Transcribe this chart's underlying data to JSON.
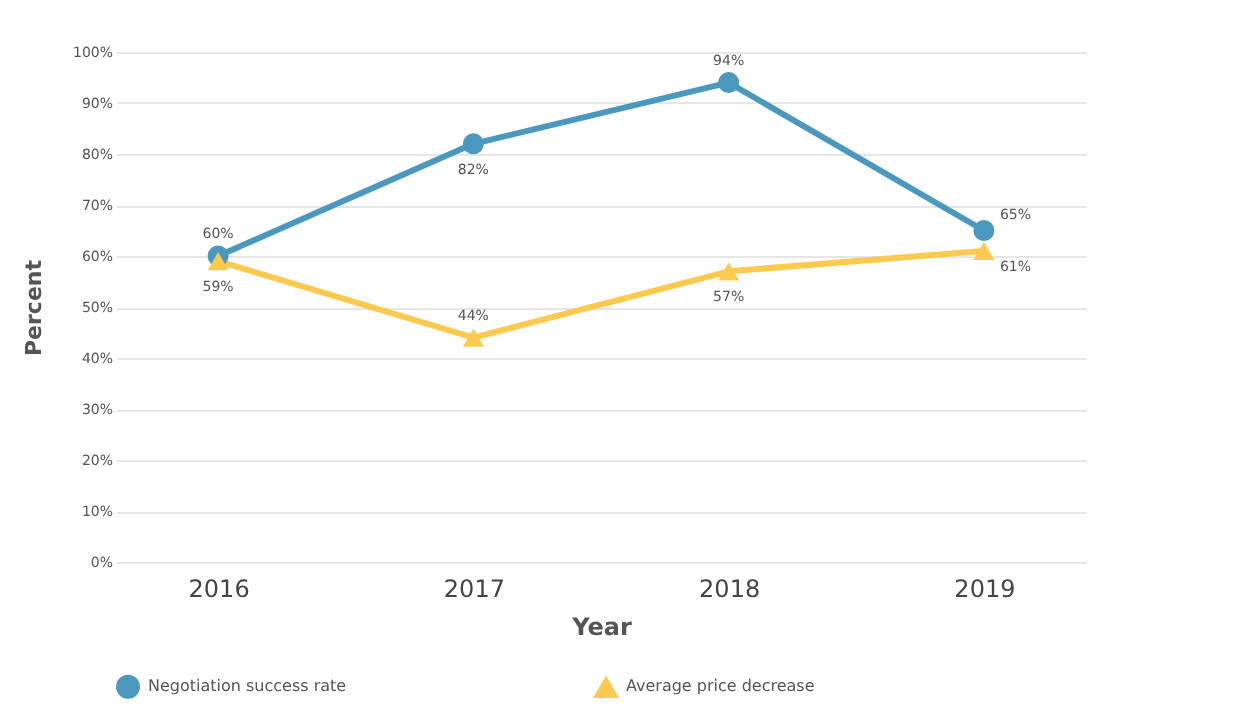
{
  "chart_data": {
    "type": "line",
    "xlabel": "Year",
    "ylabel": "Percent",
    "categories": [
      "2016",
      "2017",
      "2018",
      "2019"
    ],
    "series": [
      {
        "name": "Negotiation success rate",
        "color": "#4a98bd",
        "marker": "circle",
        "values": [
          60,
          82,
          94,
          65
        ],
        "value_labels": [
          "60%",
          "82%",
          "94%",
          "65%"
        ]
      },
      {
        "name": "Average price decrease",
        "color": "#fdca4f",
        "marker": "triangle",
        "values": [
          59,
          44,
          57,
          61
        ],
        "value_labels": [
          "59%",
          "44%",
          "57%",
          "61%"
        ]
      }
    ],
    "ylim": [
      0,
      100
    ],
    "yticks": [
      {
        "value": 0,
        "label": "0%"
      },
      {
        "value": 10,
        "label": "10%"
      },
      {
        "value": 20,
        "label": "20%"
      },
      {
        "value": 30,
        "label": "30%"
      },
      {
        "value": 40,
        "label": "40%"
      },
      {
        "value": 50,
        "label": "50%"
      },
      {
        "value": 60,
        "label": "60%"
      },
      {
        "value": 70,
        "label": "70%"
      },
      {
        "value": 80,
        "label": "80%"
      },
      {
        "value": 90,
        "label": "90%"
      },
      {
        "value": 100,
        "label": "100%"
      }
    ],
    "grid": "y",
    "legend": "bottom",
    "line_style": "solid"
  }
}
